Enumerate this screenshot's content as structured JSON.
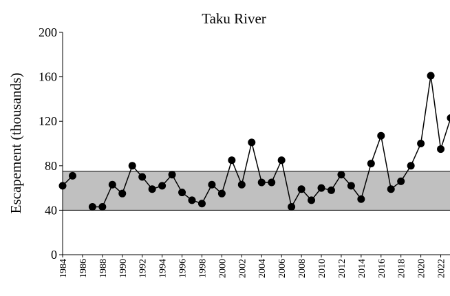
{
  "chart_data": {
    "type": "line",
    "title": "Taku River",
    "ylabel": "Escapement (thousands)",
    "x": [
      1984,
      1985,
      1986,
      1987,
      1988,
      1989,
      1990,
      1991,
      1992,
      1993,
      1994,
      1995,
      1996,
      1997,
      1998,
      1999,
      2000,
      2001,
      2002,
      2003,
      2004,
      2005,
      2006,
      2007,
      2008,
      2009,
      2010,
      2011,
      2012,
      2013,
      2014,
      2015,
      2016,
      2017,
      2018,
      2019,
      2020,
      2021,
      2022,
      2023
    ],
    "values": [
      62,
      71,
      null,
      43,
      43,
      63,
      55,
      80,
      70,
      59,
      62,
      72,
      56,
      49,
      46,
      63,
      55,
      85,
      63,
      101,
      65,
      65,
      85,
      43,
      59,
      49,
      60,
      58,
      72,
      62,
      50,
      82,
      107,
      59,
      66,
      80,
      100,
      161,
      95,
      123
    ],
    "color": "#000000",
    "goal_range": [
      40,
      75
    ],
    "goal_color": "#c0c0c0",
    "xlim": [
      1984,
      2023
    ],
    "xticks": [
      1984,
      1986,
      1988,
      1990,
      1992,
      1994,
      1996,
      1998,
      2000,
      2002,
      2004,
      2006,
      2008,
      2010,
      2012,
      2014,
      2016,
      2018,
      2020,
      2022
    ],
    "ylim": [
      0,
      200
    ],
    "yticks": [
      0,
      40,
      80,
      120,
      160,
      200
    ]
  }
}
